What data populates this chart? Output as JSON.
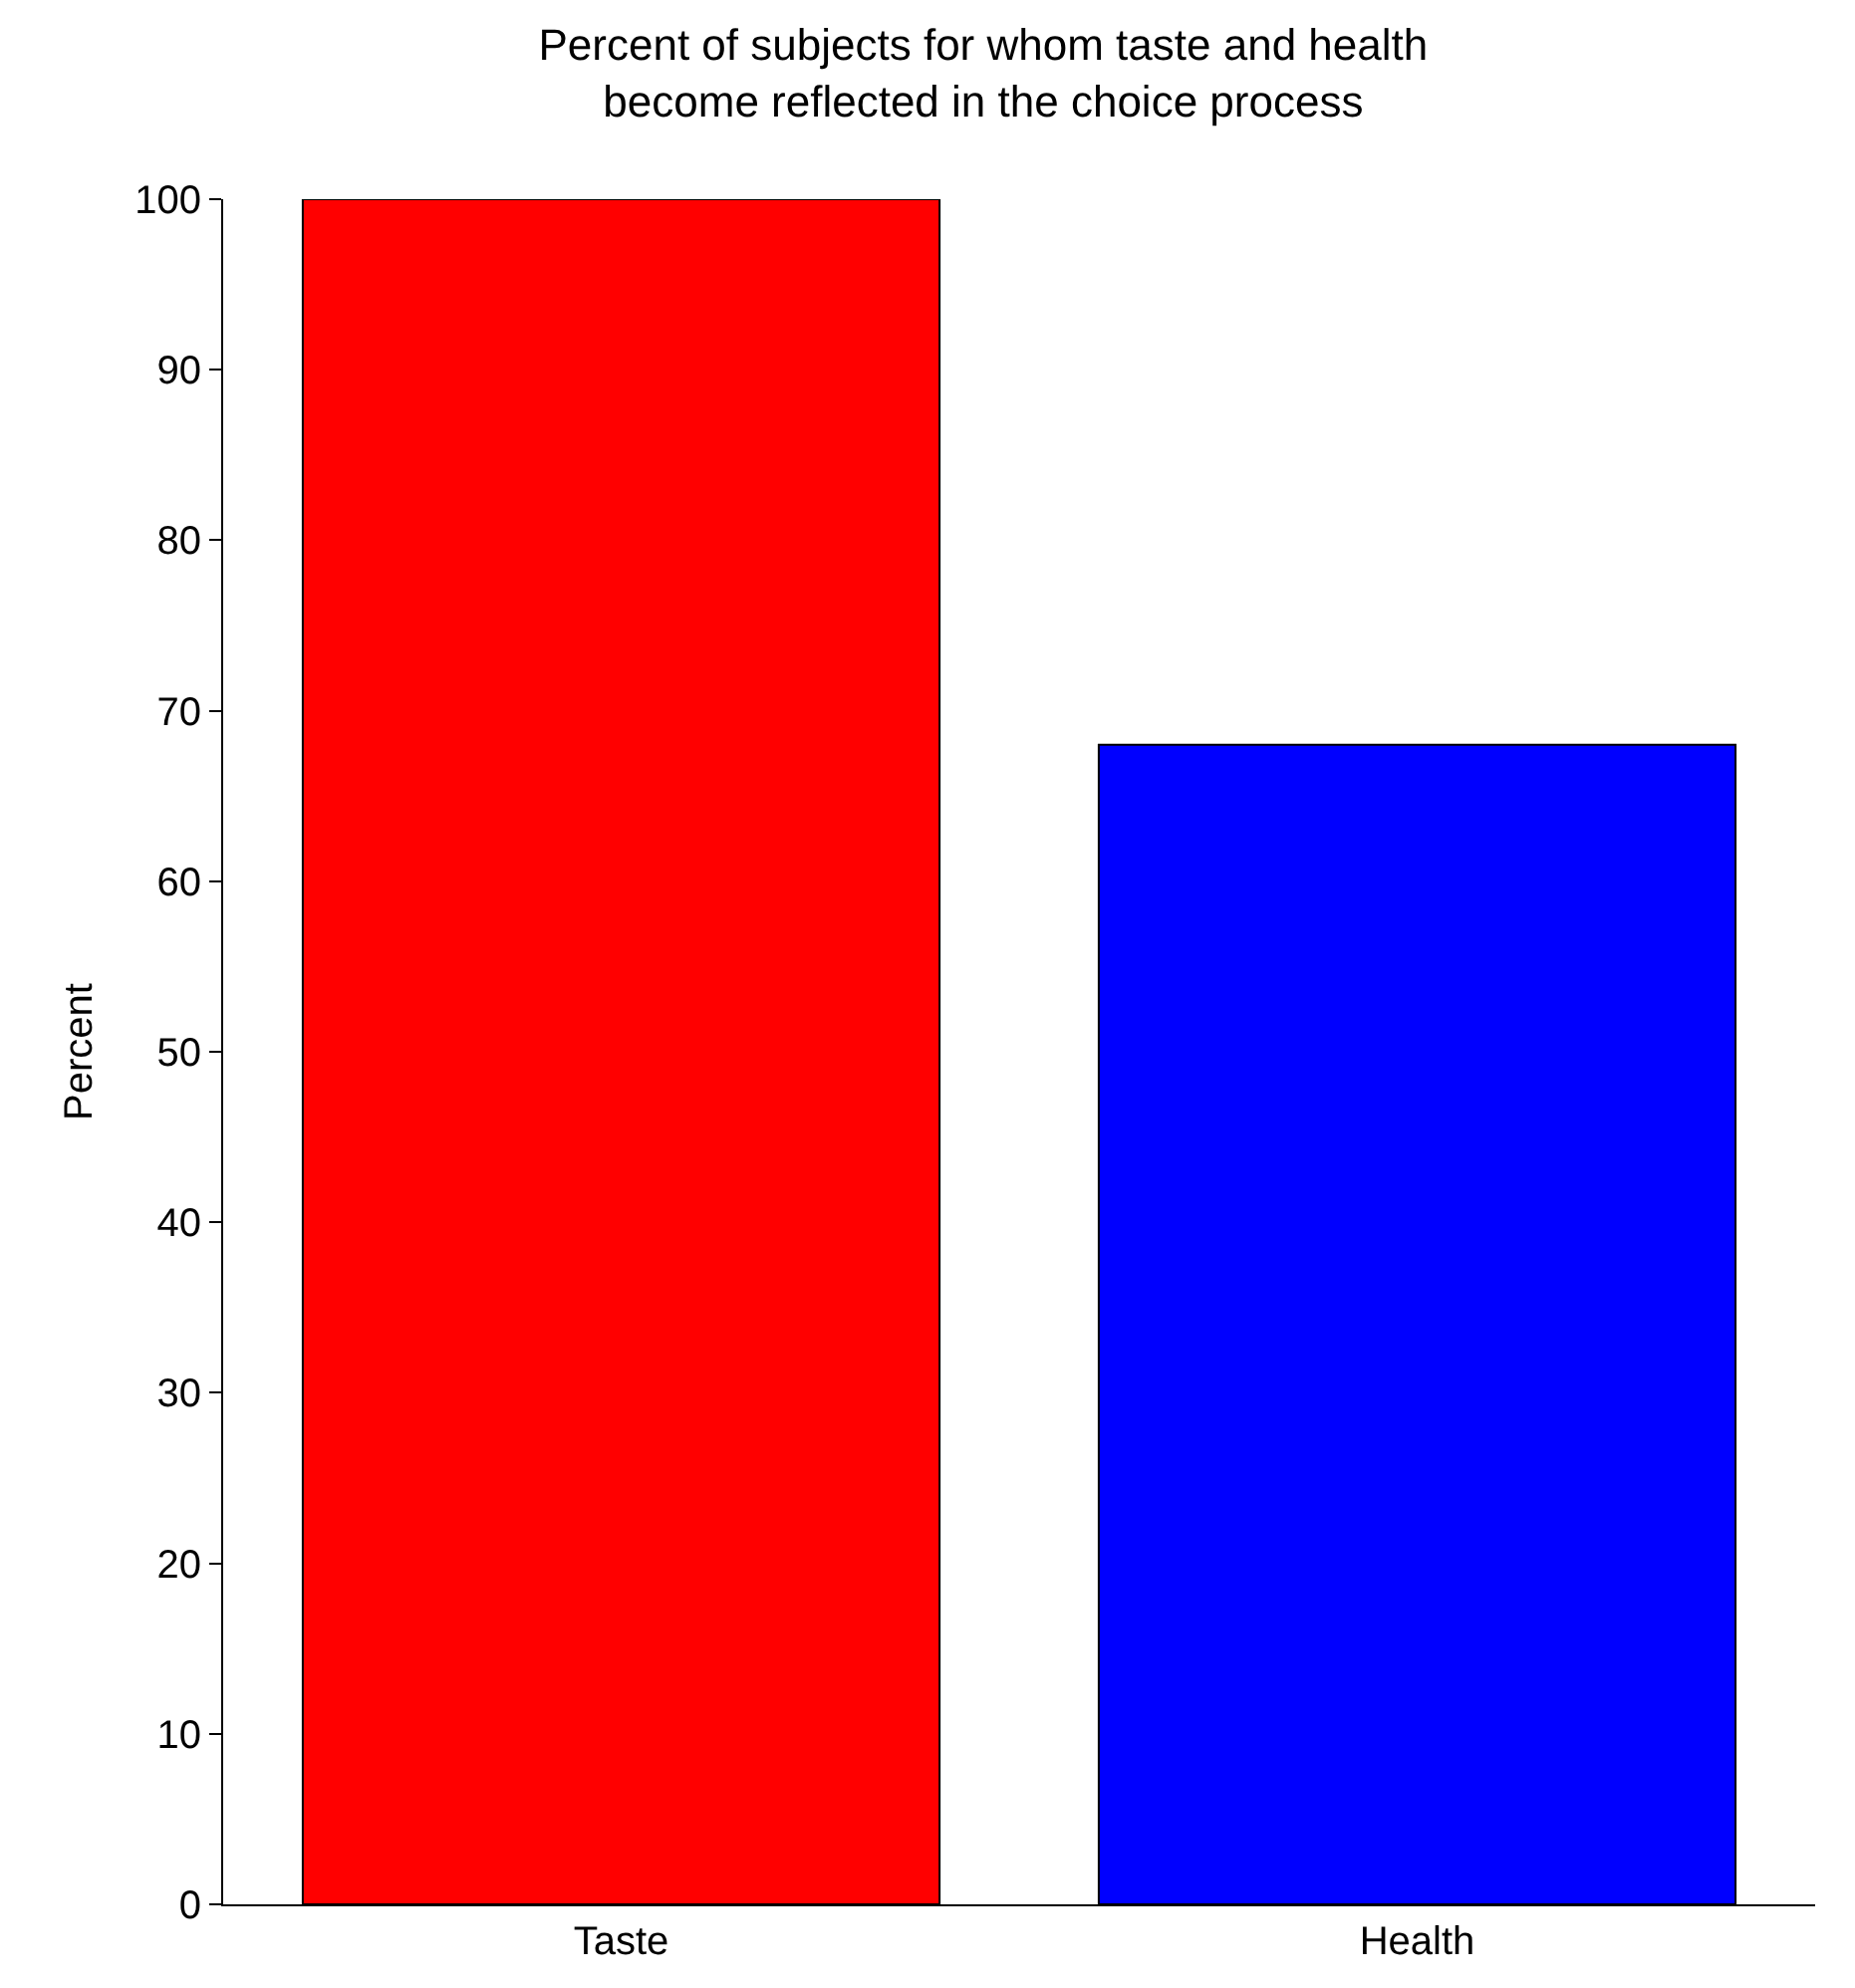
{
  "chart_data": {
    "type": "bar",
    "title": "Percent of subjects for whom taste and health\nbecome reflected in the choice process",
    "ylabel": "Percent",
    "categories": [
      "Taste",
      "Health"
    ],
    "values": [
      100,
      68
    ],
    "colors": [
      "#ff0000",
      "#0000ff"
    ],
    "ylim": [
      0,
      100
    ],
    "yticks": [
      0,
      10,
      20,
      30,
      40,
      50,
      60,
      70,
      80,
      90,
      100
    ]
  }
}
